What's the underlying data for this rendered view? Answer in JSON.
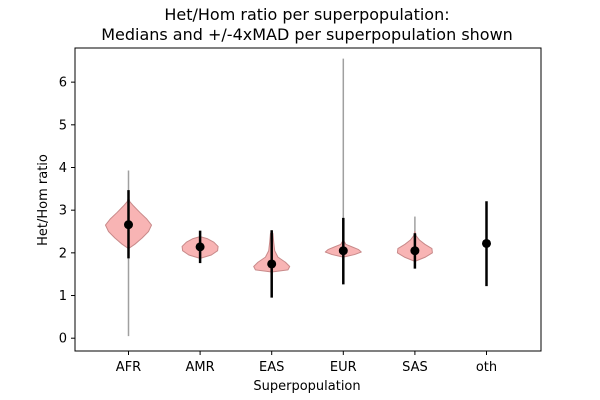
{
  "chart_data": {
    "type": "violin",
    "title": "Het/Hom ratio per superpopulation:",
    "subtitle": "Medians and +/-4xMAD per superpopulation shown",
    "xlabel": "Superpopulation",
    "ylabel": "Het/Hom ratio",
    "ylim": [
      -0.3,
      6.8
    ],
    "yticks": [
      0,
      1,
      2,
      3,
      4,
      5,
      6
    ],
    "categories": [
      "AFR",
      "AMR",
      "EAS",
      "EUR",
      "SAS",
      "oth"
    ],
    "violin_color": "#f8b0b0",
    "violin_edge_color": "#c88a8a",
    "range_line_color": "#a0a0a0",
    "marker_color": "#000000",
    "series": [
      {
        "category": "AFR",
        "median": 2.66,
        "mad_low": 1.87,
        "mad_high": 3.47,
        "min": 0.05,
        "max": 3.93,
        "density": [
          [
            2.1,
            0.0
          ],
          [
            2.2,
            0.25
          ],
          [
            2.35,
            0.55
          ],
          [
            2.5,
            0.8
          ],
          [
            2.65,
            0.92
          ],
          [
            2.8,
            0.72
          ],
          [
            2.95,
            0.45
          ],
          [
            3.1,
            0.2
          ],
          [
            3.2,
            0.05
          ],
          [
            3.3,
            0.0
          ]
        ]
      },
      {
        "category": "AMR",
        "median": 2.14,
        "mad_low": 1.76,
        "mad_high": 2.52,
        "min": 1.87,
        "max": 2.38,
        "density": [
          [
            1.87,
            0.0
          ],
          [
            1.95,
            0.45
          ],
          [
            2.05,
            0.7
          ],
          [
            2.15,
            0.72
          ],
          [
            2.25,
            0.55
          ],
          [
            2.33,
            0.3
          ],
          [
            2.38,
            0.0
          ]
        ]
      },
      {
        "category": "EAS",
        "median": 1.74,
        "mad_low": 0.95,
        "mad_high": 2.53,
        "min": 1.55,
        "max": 2.52,
        "density": [
          [
            1.55,
            0.0
          ],
          [
            1.6,
            0.65
          ],
          [
            1.68,
            0.72
          ],
          [
            1.78,
            0.55
          ],
          [
            1.9,
            0.25
          ],
          [
            2.05,
            0.12
          ],
          [
            2.25,
            0.08
          ],
          [
            2.45,
            0.05
          ],
          [
            2.52,
            0.0
          ]
        ]
      },
      {
        "category": "EUR",
        "median": 2.05,
        "mad_low": 1.26,
        "mad_high": 2.82,
        "min": 1.6,
        "max": 6.55,
        "density": [
          [
            1.9,
            0.0
          ],
          [
            1.96,
            0.45
          ],
          [
            2.02,
            0.72
          ],
          [
            2.08,
            0.6
          ],
          [
            2.14,
            0.35
          ],
          [
            2.2,
            0.1
          ],
          [
            2.3,
            0.0
          ]
        ]
      },
      {
        "category": "SAS",
        "median": 2.05,
        "mad_low": 1.63,
        "mad_high": 2.46,
        "min": 1.7,
        "max": 2.85,
        "density": [
          [
            1.8,
            0.0
          ],
          [
            1.9,
            0.42
          ],
          [
            2.0,
            0.7
          ],
          [
            2.1,
            0.68
          ],
          [
            2.2,
            0.4
          ],
          [
            2.3,
            0.18
          ],
          [
            2.4,
            0.05
          ],
          [
            2.5,
            0.0
          ]
        ]
      },
      {
        "category": "oth",
        "median": 2.22,
        "mad_low": 1.22,
        "mad_high": 3.21,
        "min": null,
        "max": null,
        "density": []
      }
    ]
  }
}
